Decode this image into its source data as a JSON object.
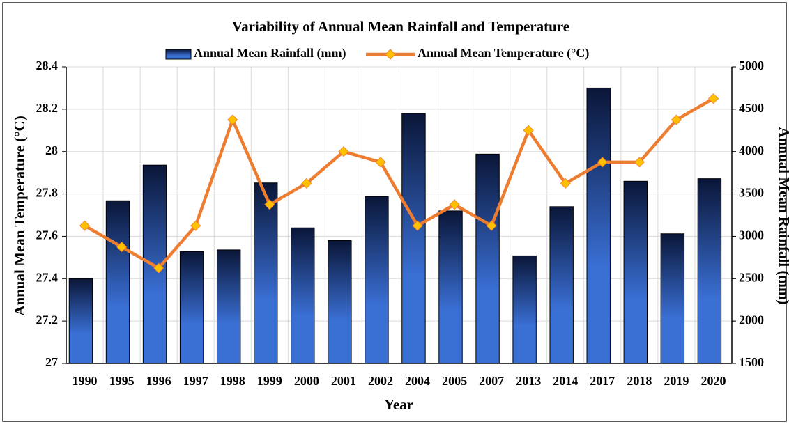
{
  "chart_data": {
    "type": "bar_line",
    "title": "Variability of Annual Mean Rainfall and Temperature",
    "x_label": "Year",
    "y_label": "Annual Mean Temperature (°C)",
    "y2_label": "Annual Mean Rainfall (mm)",
    "categories": [
      "1990",
      "1995",
      "1996",
      "1997",
      "1998",
      "1999",
      "2000",
      "2001",
      "2002",
      "2004",
      "2005",
      "2007",
      "2013",
      "2014",
      "2017",
      "2018",
      "2019",
      "2020"
    ],
    "series": [
      {
        "name": "Annual Mean Rainfall (mm)",
        "type": "bar",
        "axis": "y2",
        "color": "#3a6fd4",
        "values": [
          2500,
          3420,
          3840,
          2820,
          2840,
          3630,
          3100,
          2950,
          3470,
          4450,
          3300,
          3970,
          2770,
          3350,
          4750,
          3650,
          3030,
          3680
        ]
      },
      {
        "name": "Annual Mean Temperature (°C)",
        "type": "line",
        "axis": "y",
        "color": "#ed7d31",
        "marker_color": "#ffc000",
        "values": [
          27.65,
          27.55,
          27.45,
          27.65,
          28.15,
          27.75,
          27.85,
          28.0,
          27.95,
          27.65,
          27.75,
          27.65,
          28.1,
          27.85,
          27.95,
          27.95,
          28.15,
          28.25
        ]
      }
    ],
    "ylim": [
      27,
      28.4
    ],
    "yticks": [
      27,
      27.2,
      27.4,
      27.6,
      27.8,
      28,
      28.2,
      28.4
    ],
    "y2lim": [
      1500,
      5000
    ],
    "y2ticks": [
      1500,
      2000,
      2500,
      3000,
      3500,
      4000,
      4500,
      5000
    ],
    "grid": true,
    "legend": "top"
  }
}
